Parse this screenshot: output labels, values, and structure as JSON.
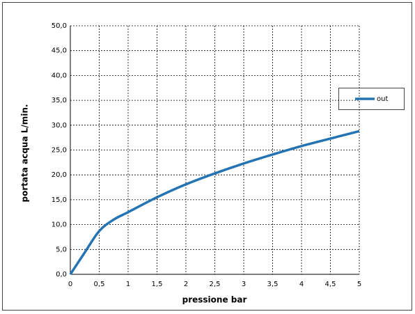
{
  "chart_data": {
    "type": "line",
    "xlabel": "pressione bar",
    "ylabel": "portata acqua L/min.",
    "x": [
      0,
      0.25,
      0.5,
      0.75,
      1,
      1.5,
      2,
      2.5,
      3,
      3.5,
      4,
      4.5,
      5
    ],
    "series": [
      {
        "name": "out",
        "color": "#2473b2",
        "values": [
          0,
          4.4,
          8.7,
          11,
          12.5,
          15.5,
          18.1,
          20.3,
          22.3,
          24.1,
          25.8,
          27.3,
          28.8
        ]
      }
    ],
    "xlim": [
      0,
      5
    ],
    "xticks": [
      0,
      {
        "value": 0.5,
        "label": "0,5"
      },
      1,
      {
        "value": 1.5,
        "label": "1,5"
      },
      2,
      {
        "value": 2.5,
        "label": "2,5"
      },
      3,
      {
        "value": 3.5,
        "label": "3,5"
      },
      4,
      {
        "value": 4.5,
        "label": "4,5"
      },
      5
    ],
    "ylim": [
      0,
      50
    ],
    "yticks": [
      {
        "value": 0,
        "label": "0,0"
      },
      {
        "value": 5,
        "label": "5,0"
      },
      {
        "value": 10,
        "label": "10,0"
      },
      {
        "value": 15,
        "label": "15,0"
      },
      {
        "value": 20,
        "label": "20,0"
      },
      {
        "value": 25,
        "label": "25,0"
      },
      {
        "value": 30,
        "label": "30,0"
      },
      {
        "value": 35,
        "label": "35,0"
      },
      {
        "value": 40,
        "label": "40,0"
      },
      {
        "value": 45,
        "label": "45,0"
      },
      {
        "value": 50,
        "label": "50,0"
      }
    ],
    "grid": true,
    "legend": "right"
  }
}
